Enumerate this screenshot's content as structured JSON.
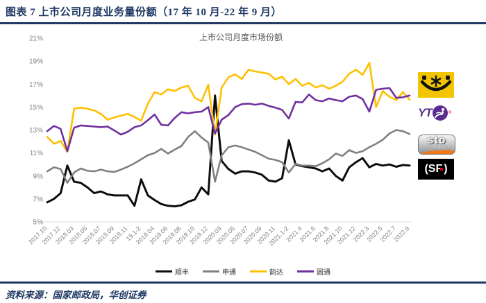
{
  "header": {
    "title": "图表 7  上市公司月度业务量份额（17 年 10 月-22 年 9 月）"
  },
  "chart_data": {
    "type": "line",
    "title": "上市公司月度市场份额",
    "xlabel": "",
    "ylabel": "",
    "ylim": [
      5,
      21
    ],
    "ytick_step": 2,
    "grid": false,
    "legend_position": "bottom",
    "y_tick_labels": [
      "21%",
      "19%",
      "17%",
      "15%",
      "13%",
      "11%",
      "9%",
      "7%",
      "5%"
    ],
    "x_tick_labels": [
      "2017.10",
      "2017.12",
      "2018.03",
      "2018.05",
      "2018.07",
      "2018.09",
      "2018.11",
      "19.1-2",
      "2019.04",
      "2019.06",
      "2019.08",
      "2019.10",
      "2019.12",
      "2020.03",
      "2020.05",
      "2020.07",
      "2020.09",
      "2020.11",
      "2021.1-2",
      "2021.4",
      "2021.6",
      "2021.8",
      "2021.10",
      "2021.12",
      "2022.3",
      "2022.5",
      "2022.7",
      "2022.9"
    ],
    "x_tick_every_n_points": 2,
    "series": [
      {
        "id": "sf",
        "name": "顺丰",
        "color": "#0D0D0D",
        "values": [
          6.7,
          7.0,
          7.5,
          9.9,
          8.5,
          8.4,
          8.0,
          7.5,
          7.65,
          7.4,
          7.3,
          7.3,
          7.3,
          6.4,
          8.7,
          7.3,
          6.9,
          6.55,
          6.4,
          6.35,
          6.45,
          6.75,
          6.95,
          8.0,
          7.4,
          16.0,
          10.3,
          9.6,
          9.2,
          9.4,
          9.4,
          9.3,
          9.1,
          8.6,
          8.5,
          8.8,
          12.1,
          10.0,
          9.85,
          9.75,
          9.65,
          9.4,
          9.65,
          9.0,
          8.6,
          9.75,
          10.2,
          10.55,
          9.75,
          10.05,
          9.9,
          10.0,
          9.8,
          9.95,
          9.9
        ]
      },
      {
        "id": "sto",
        "name": "申通",
        "color": "#808080",
        "values": [
          9.4,
          9.75,
          9.6,
          8.4,
          9.3,
          9.65,
          9.45,
          9.4,
          9.55,
          9.4,
          9.35,
          9.55,
          9.8,
          10.1,
          10.45,
          10.8,
          11.0,
          11.35,
          10.95,
          11.3,
          11.6,
          12.4,
          12.9,
          12.35,
          11.9,
          8.5,
          10.8,
          11.5,
          11.65,
          11.5,
          11.3,
          11.1,
          10.8,
          10.5,
          10.4,
          10.2,
          9.3,
          10.05,
          9.9,
          9.9,
          9.85,
          10.1,
          10.45,
          10.95,
          10.75,
          11.25,
          11.0,
          11.15,
          11.5,
          11.8,
          12.15,
          12.7,
          13.0,
          12.9,
          12.65
        ]
      },
      {
        "id": "yunda",
        "name": "韵达",
        "color": "#FFC000",
        "values": [
          12.4,
          11.8,
          12.05,
          11.1,
          14.85,
          14.95,
          14.85,
          14.7,
          14.4,
          13.9,
          14.1,
          14.25,
          14.4,
          14.15,
          13.8,
          15.3,
          16.3,
          16.1,
          16.55,
          16.4,
          16.7,
          16.85,
          15.8,
          15.5,
          16.95,
          12.6,
          16.7,
          17.6,
          17.85,
          17.45,
          18.25,
          18.1,
          18.0,
          17.9,
          17.4,
          17.65,
          17.0,
          17.45,
          16.85,
          17.1,
          16.7,
          16.9,
          16.6,
          16.85,
          17.2,
          17.9,
          18.25,
          17.8,
          18.85,
          15.0,
          16.4,
          15.9,
          15.6,
          16.3,
          15.65
        ]
      },
      {
        "id": "yto",
        "name": "圆通",
        "color": "#7030A0",
        "values": [
          12.9,
          13.35,
          13.1,
          11.15,
          13.2,
          13.4,
          13.35,
          13.3,
          13.25,
          13.3,
          12.95,
          12.6,
          12.85,
          13.25,
          13.4,
          13.85,
          14.35,
          13.45,
          13.4,
          14.05,
          14.55,
          14.45,
          14.55,
          14.6,
          15.0,
          12.7,
          13.9,
          14.3,
          15.0,
          15.25,
          15.3,
          15.2,
          15.3,
          15.1,
          14.95,
          14.75,
          14.0,
          15.45,
          15.4,
          16.1,
          15.6,
          15.5,
          15.75,
          15.6,
          15.5,
          15.9,
          16.0,
          15.7,
          14.6,
          16.5,
          16.6,
          16.65,
          15.8,
          15.85,
          16.0
        ]
      }
    ]
  },
  "logos": {
    "yunda": {
      "bg_color": "#F2C500"
    },
    "yto": {
      "text": "YT",
      "reg": "®",
      "brand_color": "#5B2C8D"
    },
    "sto": {
      "text": "sto",
      "sub": "express",
      "swoosh_color": "#F07818"
    },
    "sf": {
      "open": "(",
      "letters": "SF",
      "close": ")",
      "dot_color": "#E60012",
      "bg_color": "#000000"
    }
  },
  "footer": {
    "source": "资料来源：国家邮政局，华创证券"
  },
  "accent_color": "#1F3864"
}
